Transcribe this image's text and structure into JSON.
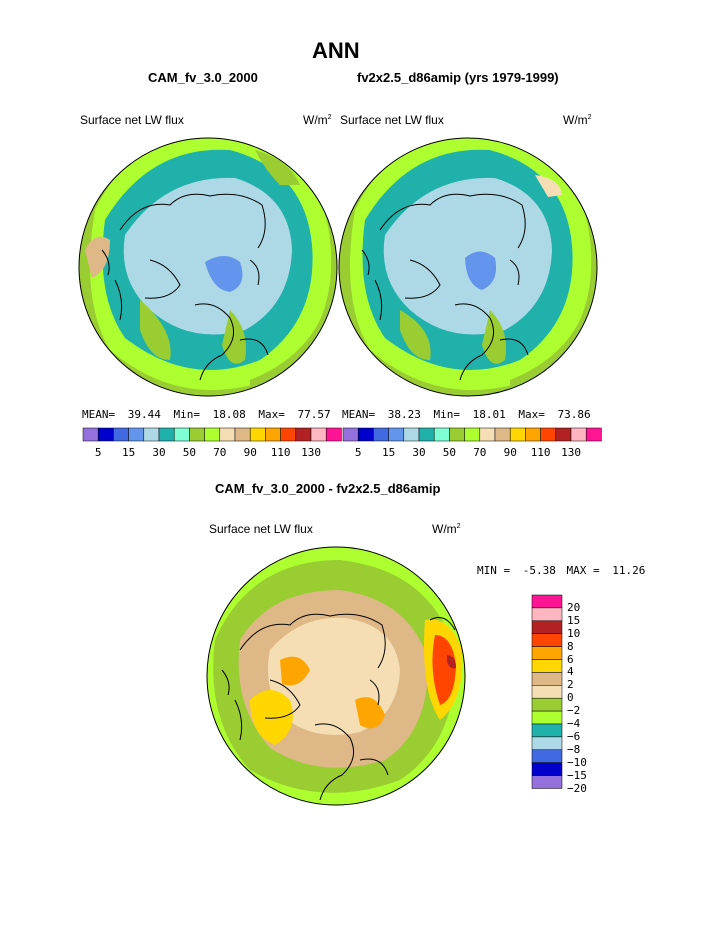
{
  "title": "ANN",
  "top_left": {
    "case": "CAM_fv_3.0_2000",
    "field": "Surface net LW flux",
    "units_base": "W/m",
    "units_exp": "2",
    "stats": {
      "mean_label": "MEAN=",
      "mean": "39.44",
      "min_label": "Min=",
      "min": "18.08",
      "max_label": "Max=",
      "max": "77.57"
    }
  },
  "top_right": {
    "case": "fv2x2.5_d86amip (yrs 1979-1999)",
    "field": "Surface net LW flux",
    "units_base": "W/m",
    "units_exp": "2",
    "stats": {
      "mean_label": "MEAN=",
      "mean": "38.23",
      "min_label": "Min=",
      "min": "18.01",
      "max_label": "Max=",
      "max": "73.86"
    }
  },
  "top_colorbar": {
    "colors": [
      "#9370db",
      "#0000cd",
      "#4169e1",
      "#6495ed",
      "#add8e6",
      "#20b2aa",
      "#7fffd4",
      "#9acd32",
      "#adff2f",
      "#f5deb3",
      "#deb887",
      "#ffd700",
      "#ffa500",
      "#ff4500",
      "#b22222",
      "#ffb6c1",
      "#ff1493"
    ],
    "labels": [
      "5",
      "15",
      "30",
      "50",
      "70",
      "90",
      "110",
      "130"
    ]
  },
  "bottom": {
    "case": "CAM_fv_3.0_2000 - fv2x2.5_d86amip",
    "field": "Surface net LW flux",
    "units_base": "W/m",
    "units_exp": "2",
    "minmax": {
      "min_label": "MIN =",
      "min": "-5.38",
      "max_label": "MAX =",
      "max": "11.26"
    }
  },
  "diff_colorbar": {
    "colors": [
      "#ff1493",
      "#ffb6c1",
      "#b22222",
      "#ff4500",
      "#ffa500",
      "#ffd700",
      "#deb887",
      "#f5deb3",
      "#9acd32",
      "#adff2f",
      "#20b2aa",
      "#add8e6",
      "#4169e1",
      "#0000cd",
      "#9370db"
    ],
    "labels": [
      "20",
      "15",
      "10",
      "8",
      "6",
      "4",
      "2",
      "0",
      "−2",
      "−4",
      "−6",
      "−8",
      "−10",
      "−15",
      "−20"
    ]
  }
}
